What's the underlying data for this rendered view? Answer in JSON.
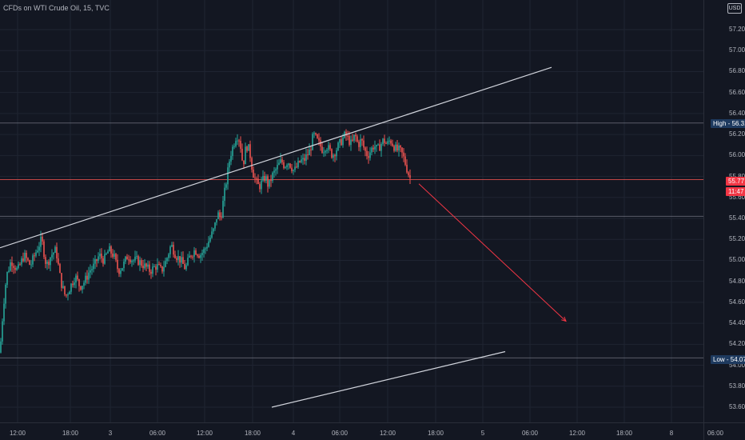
{
  "legend": {
    "title": "CFDs on WTI Crude Oil, 15, TVC"
  },
  "currency_button": "USD",
  "colors": {
    "background": "#131722",
    "grid": "#1f2431",
    "up": "#26a69a",
    "down": "#ef5350",
    "trendline": "#d1d4dc",
    "hline": "#787b86",
    "current_price_line": "#ef5350",
    "arrow": "#f23645",
    "high_low_badge": "#1e3a5f",
    "price_badge": "#f23645"
  },
  "price_ticks": [
    "57.20",
    "57.00",
    "56.80",
    "56.60",
    "56.40",
    "56.20",
    "56.00",
    "55.80",
    "55.60",
    "55.40",
    "55.20",
    "55.00",
    "54.80",
    "54.60",
    "54.40",
    "54.20",
    "54.00",
    "53.80",
    "53.60"
  ],
  "time_ticks": [
    "12:00",
    "18:00",
    "3",
    "06:00",
    "12:00",
    "18:00",
    "4",
    "06:00",
    "12:00",
    "18:00",
    "5",
    "06:00",
    "12:00",
    "18:00",
    "8",
    "06:00"
  ],
  "badges": {
    "high": "High - 56.31",
    "low": "Low - 54.07",
    "last_price": "55.77",
    "countdown": "11:47"
  },
  "chart_data": {
    "type": "candlestick",
    "symbol": "CFDs on WTI Crude Oil",
    "interval": "15",
    "source": "TVC",
    "currency": "USD",
    "ylim": [
      53.5,
      57.35
    ],
    "last_price": 55.77,
    "high": 56.31,
    "low": 54.07,
    "horizontal_levels": [
      56.31,
      55.77,
      55.42,
      54.07
    ],
    "close_path": [
      [
        0,
        54.12
      ],
      [
        4,
        54.55
      ],
      [
        8,
        54.85
      ],
      [
        14,
        55.0
      ],
      [
        22,
        54.9
      ],
      [
        30,
        55.05
      ],
      [
        38,
        54.95
      ],
      [
        46,
        55.1
      ],
      [
        52,
        55.2
      ],
      [
        58,
        54.95
      ],
      [
        64,
        55.05
      ],
      [
        70,
        55.1
      ],
      [
        76,
        54.8
      ],
      [
        82,
        54.65
      ],
      [
        88,
        54.75
      ],
      [
        94,
        54.85
      ],
      [
        100,
        54.75
      ],
      [
        106,
        54.8
      ],
      [
        112,
        54.9
      ],
      [
        118,
        54.95
      ],
      [
        124,
        55.05
      ],
      [
        130,
        55.0
      ],
      [
        136,
        55.1
      ],
      [
        142,
        55.05
      ],
      [
        148,
        54.9
      ],
      [
        154,
        54.95
      ],
      [
        160,
        55.05
      ],
      [
        166,
        55.0
      ],
      [
        172,
        55.0
      ],
      [
        180,
        54.95
      ],
      [
        188,
        54.9
      ],
      [
        196,
        54.95
      ],
      [
        202,
        54.9
      ],
      [
        208,
        55.0
      ],
      [
        214,
        55.15
      ],
      [
        220,
        55.05
      ],
      [
        226,
        55.0
      ],
      [
        232,
        54.92
      ],
      [
        238,
        55.05
      ],
      [
        244,
        55.1
      ],
      [
        250,
        55.05
      ],
      [
        256,
        55.1
      ],
      [
        262,
        55.2
      ],
      [
        268,
        55.3
      ],
      [
        272,
        55.45
      ],
      [
        276,
        55.4
      ],
      [
        280,
        55.6
      ],
      [
        284,
        55.8
      ],
      [
        288,
        56.0
      ],
      [
        292,
        56.1
      ],
      [
        296,
        56.2
      ],
      [
        300,
        56.15
      ],
      [
        304,
        55.9
      ],
      [
        308,
        56.1
      ],
      [
        312,
        56.05
      ],
      [
        316,
        55.85
      ],
      [
        320,
        55.75
      ],
      [
        324,
        55.7
      ],
      [
        328,
        55.75
      ],
      [
        332,
        55.8
      ],
      [
        336,
        55.7
      ],
      [
        340,
        55.8
      ],
      [
        344,
        55.85
      ],
      [
        348,
        55.9
      ],
      [
        352,
        55.95
      ],
      [
        356,
        55.9
      ],
      [
        360,
        55.95
      ],
      [
        364,
        55.9
      ],
      [
        368,
        55.85
      ],
      [
        372,
        55.9
      ],
      [
        376,
        55.95
      ],
      [
        380,
        55.95
      ],
      [
        384,
        56.0
      ],
      [
        388,
        56.05
      ],
      [
        392,
        56.2
      ],
      [
        396,
        56.15
      ],
      [
        400,
        56.1
      ],
      [
        404,
        56.05
      ],
      [
        408,
        56.1
      ],
      [
        412,
        56.05
      ],
      [
        416,
        56.0
      ],
      [
        420,
        56.05
      ],
      [
        424,
        56.1
      ],
      [
        428,
        56.15
      ],
      [
        432,
        56.2
      ],
      [
        436,
        56.15
      ],
      [
        440,
        56.1
      ],
      [
        444,
        56.2
      ],
      [
        448,
        56.1
      ],
      [
        452,
        56.15
      ],
      [
        456,
        56.05
      ],
      [
        460,
        56.0
      ],
      [
        464,
        56.05
      ],
      [
        468,
        56.1
      ],
      [
        472,
        56.05
      ],
      [
        476,
        56.1
      ],
      [
        480,
        56.15
      ],
      [
        484,
        56.1
      ],
      [
        488,
        56.15
      ],
      [
        492,
        56.1
      ],
      [
        496,
        56.05
      ],
      [
        500,
        56.05
      ],
      [
        504,
        56.0
      ],
      [
        508,
        55.9
      ],
      [
        512,
        55.8
      ],
      [
        514,
        55.77
      ]
    ],
    "upper_trendline": [
      [
        0,
        55.12
      ],
      [
        690,
        56.84
      ]
    ],
    "lower_trendline": [
      [
        340,
        53.6
      ],
      [
        632,
        54.13
      ]
    ],
    "projection_arrow": [
      [
        524,
        55.73
      ],
      [
        708,
        54.42
      ]
    ]
  }
}
